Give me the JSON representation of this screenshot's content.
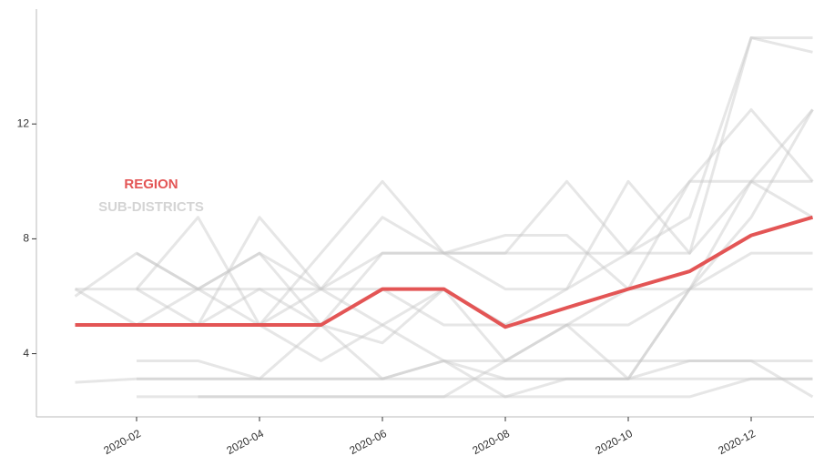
{
  "chart_data": {
    "type": "line",
    "x": [
      "2020-01",
      "2020-02",
      "2020-03",
      "2020-04",
      "2020-05",
      "2020-06",
      "2020-07",
      "2020-08",
      "2020-09",
      "2020-10",
      "2020-11",
      "2020-12",
      "2021-01"
    ],
    "xticks": [
      "2020-02",
      "2020-04",
      "2020-06",
      "2020-08",
      "2020-10",
      "2020-12"
    ],
    "ylim": [
      1.8,
      16
    ],
    "yticks": [
      4,
      8,
      12
    ],
    "series": [
      {
        "name": "REGION",
        "color": "#e35555",
        "values": [
          5.0,
          5.0,
          5.0,
          5.0,
          5.0,
          6.25,
          6.25,
          4.93,
          5.6,
          6.25,
          6.87,
          8.12,
          8.75
        ]
      }
    ],
    "sub_districts": {
      "name": "SUB-DISTRICTS",
      "color": "#c8c8c8",
      "lines": [
        [
          3.0,
          3.125,
          3.125,
          3.125,
          3.125,
          3.125,
          3.125,
          3.125,
          3.125,
          3.125,
          3.125,
          3.125,
          3.125
        ],
        [
          null,
          2.5,
          2.5,
          2.5,
          2.5,
          2.5,
          2.5,
          2.5,
          2.5,
          2.5,
          2.5,
          3.125,
          3.125
        ],
        [
          6.25,
          6.25,
          6.25,
          7.5,
          6.25,
          7.5,
          7.5,
          7.5,
          7.5,
          7.5,
          7.5,
          10,
          12.5
        ],
        [
          6.0,
          7.5,
          6.25,
          5.0,
          6.25,
          8.75,
          7.5,
          6.25,
          6.25,
          7.5,
          8.75,
          15,
          15
        ],
        [
          null,
          6.25,
          8.75,
          5.0,
          7.5,
          10,
          7.5,
          7.5,
          10,
          7.5,
          10,
          12.5,
          10
        ],
        [
          null,
          3.75,
          3.75,
          3.125,
          5.0,
          3.125,
          3.75,
          2.5,
          3.125,
          3.125,
          6.25,
          6.25,
          6.25
        ],
        [
          null,
          6.25,
          5.0,
          8.75,
          6.25,
          6.25,
          5.0,
          5.0,
          6.25,
          10,
          7.5,
          15,
          14.5
        ],
        [
          5.0,
          5.0,
          5.0,
          5.0,
          3.75,
          5.0,
          3.75,
          3.75,
          5.0,
          5.0,
          6.25,
          7.5,
          7.5
        ],
        [
          null,
          3.125,
          3.125,
          3.125,
          3.125,
          3.125,
          3.75,
          3.125,
          3.125,
          3.125,
          3.75,
          3.75,
          3.75
        ],
        [
          null,
          5.0,
          6.25,
          6.25,
          6.25,
          5.0,
          6.25,
          5.0,
          5.0,
          3.125,
          6.25,
          8.75,
          12.5
        ],
        [
          null,
          7.5,
          6.25,
          7.5,
          5.0,
          7.5,
          7.5,
          8.125,
          8.125,
          6.25,
          6.25,
          10,
          10
        ],
        [
          null,
          null,
          2.5,
          2.5,
          2.5,
          2.5,
          2.5,
          3.75,
          3.75,
          3.75,
          3.75,
          3.75,
          2.5
        ],
        [
          6.25,
          5.0,
          5.0,
          6.25,
          5.0,
          4.375,
          6.25,
          3.75,
          5.0,
          6.25,
          10,
          10,
          8.75
        ]
      ]
    }
  }
}
